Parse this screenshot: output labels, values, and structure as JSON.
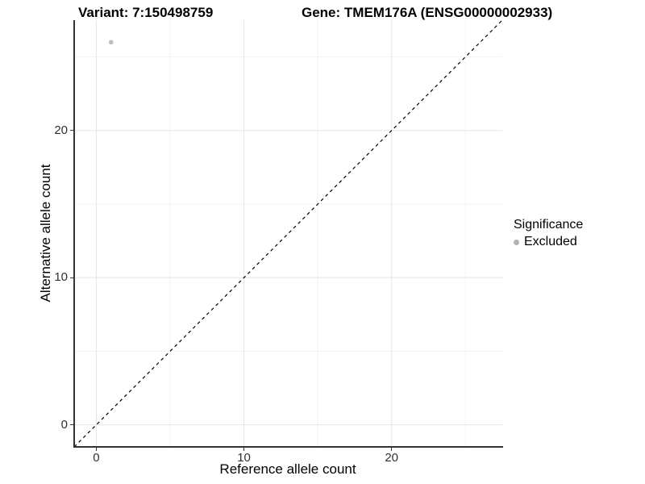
{
  "chart_data": {
    "type": "scatter",
    "title": "Variant: 7:150498759",
    "subtitle": "Gene: TMEM176A (ENSG00000002933)",
    "xlabel": "Reference allele count",
    "ylabel": "Alternative allele count",
    "xlim": [
      -1.5,
      27.5
    ],
    "ylim": [
      -1.5,
      27.5
    ],
    "x_ticks": [
      0,
      10,
      20
    ],
    "y_ticks": [
      0,
      10,
      20
    ],
    "minor_ticks": [
      5,
      15,
      25
    ],
    "grid": true,
    "reference_line": {
      "type": "identity",
      "slope": 1,
      "intercept": 0,
      "style": "dashed",
      "color": "#000000"
    },
    "series": [
      {
        "name": "Excluded",
        "color": "#bdbdbd",
        "point_radius": 2.8,
        "points": [
          {
            "x": 1,
            "y": 26
          }
        ]
      }
    ],
    "legend": {
      "title": "Significance",
      "position": "right",
      "items": [
        {
          "label": "Excluded",
          "color": "#bdbdbd"
        }
      ]
    }
  },
  "colors": {
    "grid_major": "#e6e6e6",
    "grid_minor": "#f2f2f2",
    "axis_line": "#333333",
    "tick_text": "#303030",
    "point": "#bdbdbd"
  }
}
